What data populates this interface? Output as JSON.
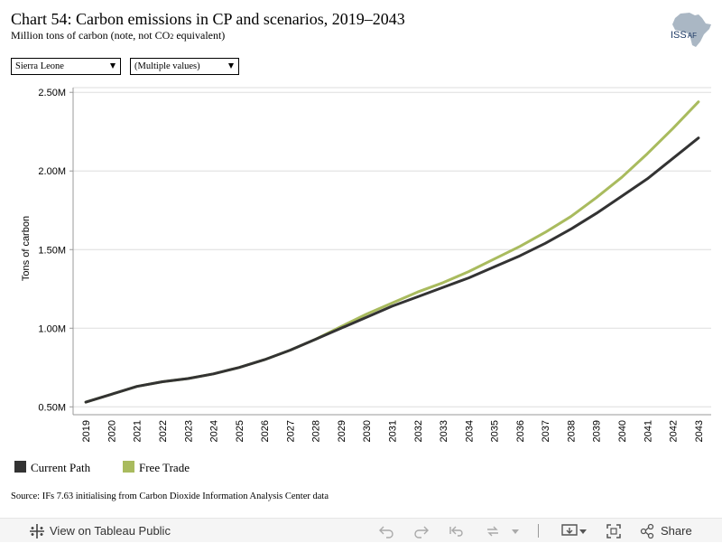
{
  "header": {
    "title": "Chart 54: Carbon emissions in CP and scenarios, 2019–2043",
    "subtitle_pre": "Million tons of carbon (note, not CO",
    "subtitle_sub": "2",
    "subtitle_post": " equivalent)",
    "logo_text": "ISS",
    "logo_text_suffix": "AF"
  },
  "filters": {
    "country": "Sierra Leone",
    "scenario": "(Multiple values)"
  },
  "colors": {
    "current_path": "#333333",
    "free_trade": "#a9bb5e",
    "grid": "#dddddd",
    "logo": "#aab7c4"
  },
  "chart_data": {
    "type": "line",
    "x": [
      2019,
      2020,
      2021,
      2022,
      2023,
      2024,
      2025,
      2026,
      2027,
      2028,
      2029,
      2030,
      2031,
      2032,
      2033,
      2034,
      2035,
      2036,
      2037,
      2038,
      2039,
      2040,
      2041,
      2042,
      2043
    ],
    "series": [
      {
        "name": "Current Path",
        "values": [
          0.53,
          0.58,
          0.63,
          0.66,
          0.68,
          0.71,
          0.75,
          0.8,
          0.86,
          0.93,
          1.0,
          1.07,
          1.14,
          1.2,
          1.26,
          1.32,
          1.39,
          1.46,
          1.54,
          1.63,
          1.73,
          1.84,
          1.95,
          2.08,
          2.21
        ]
      },
      {
        "name": "Free Trade",
        "values": [
          0.53,
          0.58,
          0.63,
          0.66,
          0.68,
          0.71,
          0.75,
          0.8,
          0.86,
          0.93,
          1.01,
          1.09,
          1.16,
          1.23,
          1.29,
          1.36,
          1.44,
          1.52,
          1.61,
          1.71,
          1.83,
          1.96,
          2.11,
          2.27,
          2.44
        ]
      }
    ],
    "ylabel": "Tons of carbon",
    "xlabel": "",
    "yticks": [
      0.5,
      1.0,
      1.5,
      2.0,
      2.5
    ],
    "ytick_labels": [
      "0.50M",
      "1.00M",
      "1.50M",
      "2.00M",
      "2.50M"
    ],
    "ylim": [
      0.45,
      2.53
    ],
    "grid": true,
    "legend_position": "bottom-left"
  },
  "legend": {
    "items": [
      "Current Path",
      "Free Trade"
    ]
  },
  "source": "Source: IFs 7.63 initialising from Carbon Dioxide Information Analysis Center data",
  "toolbar": {
    "view_label": "View on Tableau Public",
    "share_label": "Share"
  }
}
